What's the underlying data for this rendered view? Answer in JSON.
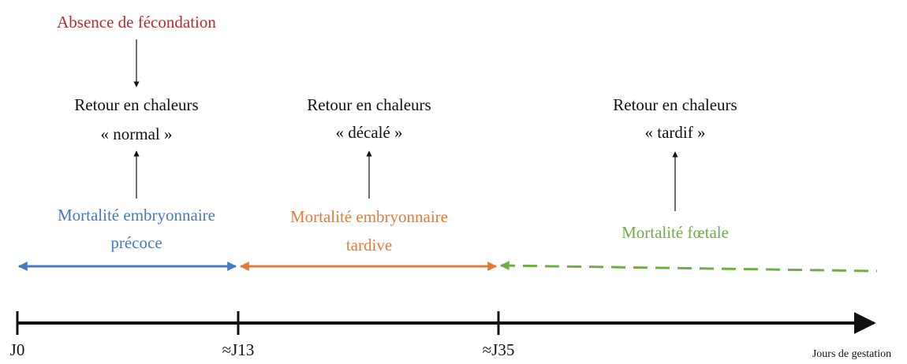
{
  "annotation": "Absence de fécondation",
  "phases": [
    {
      "return": [
        "Retour en chaleurs",
        "« normal »"
      ],
      "mortality": [
        "Mortalité embryonnaire",
        "précoce"
      ]
    },
    {
      "return": [
        "Retour en chaleurs",
        "« décalé »"
      ],
      "mortality": [
        "Mortalité embryonnaire",
        "tardive"
      ]
    },
    {
      "return": [
        "Retour en chaleurs",
        "« tardif »"
      ],
      "mortality": [
        "Mortalité fœtale"
      ]
    }
  ],
  "axis": {
    "ticks": [
      "J0",
      "≈J13",
      "≈J35"
    ],
    "label": "Jours de gestation"
  }
}
